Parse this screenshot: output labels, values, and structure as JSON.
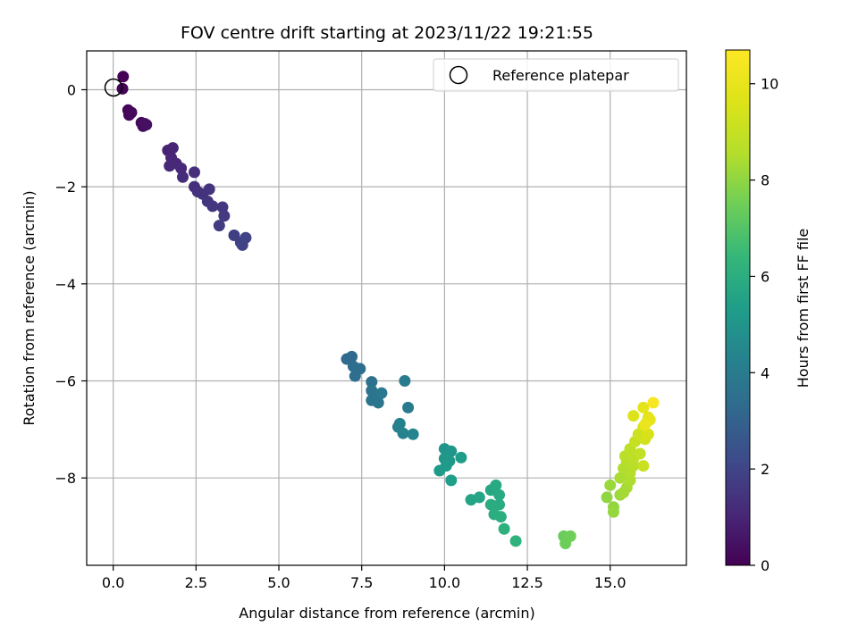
{
  "chart_data": {
    "type": "scatter",
    "title": "FOV centre drift starting at 2023/11/22 19:21:55",
    "xlabel": "Angular distance from reference (arcmin)",
    "ylabel": "Rotation from reference (arcmin)",
    "xlim": [
      -0.8,
      17.3
    ],
    "ylim": [
      -9.8,
      0.8
    ],
    "xticks": [
      0.0,
      2.5,
      5.0,
      7.5,
      10.0,
      12.5,
      15.0
    ],
    "xtick_labels": [
      "0.0",
      "2.5",
      "5.0",
      "7.5",
      "10.0",
      "12.5",
      "15.0"
    ],
    "yticks": [
      0,
      -2,
      -4,
      -6,
      -8
    ],
    "ytick_labels": [
      "0",
      "−2",
      "−4",
      "−6",
      "−8"
    ],
    "grid": true,
    "legend": {
      "position": "top-right",
      "entries": [
        "Reference platepar"
      ]
    },
    "reference_point": {
      "x": 0,
      "y": 0
    },
    "colorbar": {
      "label": "Hours from first FF file",
      "colormap": "viridis",
      "range": [
        0,
        10.7
      ],
      "ticks": [
        0,
        2,
        4,
        6,
        8,
        10
      ],
      "tick_labels": [
        "0",
        "2",
        "4",
        "6",
        "8",
        "10"
      ]
    },
    "series": [
      {
        "colored_by": "hours",
        "points": [
          [
            0.3,
            0.27,
            0.05
          ],
          [
            0.28,
            0.02,
            0.08
          ],
          [
            0.45,
            -0.42,
            0.12
          ],
          [
            0.5,
            -0.5,
            0.15
          ],
          [
            0.48,
            -0.52,
            0.18
          ],
          [
            0.55,
            -0.47,
            0.2
          ],
          [
            0.85,
            -0.68,
            0.25
          ],
          [
            0.9,
            -0.75,
            0.3
          ],
          [
            1.0,
            -0.72,
            0.35
          ],
          [
            0.95,
            -0.7,
            0.4
          ],
          [
            1.65,
            -1.25,
            0.9
          ],
          [
            1.8,
            -1.2,
            0.95
          ],
          [
            1.75,
            -1.4,
            1.0
          ],
          [
            1.9,
            -1.52,
            1.05
          ],
          [
            1.7,
            -1.57,
            1.1
          ],
          [
            2.05,
            -1.62,
            1.15
          ],
          [
            2.1,
            -1.8,
            1.2
          ],
          [
            2.45,
            -1.7,
            1.25
          ],
          [
            2.45,
            -2.0,
            1.3
          ],
          [
            2.55,
            -2.1,
            1.35
          ],
          [
            2.7,
            -2.15,
            1.4
          ],
          [
            2.9,
            -2.05,
            1.45
          ],
          [
            2.85,
            -2.3,
            1.5
          ],
          [
            3.0,
            -2.4,
            1.55
          ],
          [
            3.3,
            -2.42,
            1.6
          ],
          [
            3.35,
            -2.6,
            1.65
          ],
          [
            3.2,
            -2.8,
            1.7
          ],
          [
            3.65,
            -3.0,
            1.8
          ],
          [
            3.85,
            -3.15,
            1.85
          ],
          [
            3.9,
            -3.2,
            1.9
          ],
          [
            4.0,
            -3.05,
            1.95
          ],
          [
            7.05,
            -5.55,
            3.3
          ],
          [
            7.2,
            -5.5,
            3.35
          ],
          [
            7.25,
            -5.7,
            3.4
          ],
          [
            7.3,
            -5.9,
            3.45
          ],
          [
            7.45,
            -5.75,
            3.5
          ],
          [
            7.8,
            -6.02,
            3.6
          ],
          [
            7.8,
            -6.2,
            3.65
          ],
          [
            7.8,
            -6.4,
            3.7
          ],
          [
            8.0,
            -6.45,
            3.75
          ],
          [
            8.0,
            -6.3,
            3.8
          ],
          [
            8.1,
            -6.25,
            3.85
          ],
          [
            8.8,
            -6.0,
            4.0
          ],
          [
            8.9,
            -6.55,
            4.05
          ],
          [
            8.6,
            -6.95,
            4.2
          ],
          [
            8.65,
            -6.88,
            4.25
          ],
          [
            8.75,
            -7.08,
            4.3
          ],
          [
            9.05,
            -7.1,
            4.35
          ],
          [
            10.0,
            -7.4,
            5.0
          ],
          [
            10.2,
            -7.45,
            5.05
          ],
          [
            10.0,
            -7.6,
            5.1
          ],
          [
            10.15,
            -7.65,
            5.15
          ],
          [
            10.05,
            -7.75,
            5.2
          ],
          [
            9.85,
            -7.85,
            5.25
          ],
          [
            10.5,
            -7.58,
            5.3
          ],
          [
            10.2,
            -8.05,
            5.35
          ],
          [
            10.8,
            -8.45,
            5.6
          ],
          [
            11.05,
            -8.4,
            5.65
          ],
          [
            11.4,
            -8.25,
            5.75
          ],
          [
            11.55,
            -8.15,
            5.8
          ],
          [
            11.65,
            -8.35,
            5.85
          ],
          [
            11.65,
            -8.55,
            5.9
          ],
          [
            11.4,
            -8.55,
            5.95
          ],
          [
            11.5,
            -8.75,
            6.0
          ],
          [
            11.7,
            -8.8,
            6.05
          ],
          [
            11.8,
            -9.05,
            6.1
          ],
          [
            12.15,
            -9.3,
            6.2
          ],
          [
            13.6,
            -9.2,
            7.4
          ],
          [
            13.65,
            -9.35,
            7.45
          ],
          [
            13.8,
            -9.2,
            7.5
          ],
          [
            14.9,
            -8.4,
            8.0
          ],
          [
            15.1,
            -8.6,
            8.05
          ],
          [
            15.1,
            -8.7,
            8.1
          ],
          [
            15.0,
            -8.15,
            8.15
          ],
          [
            15.3,
            -8.35,
            8.2
          ],
          [
            15.4,
            -8.3,
            8.3
          ],
          [
            15.5,
            -8.2,
            8.35
          ],
          [
            15.3,
            -8.0,
            8.4
          ],
          [
            15.6,
            -8.05,
            8.45
          ],
          [
            15.4,
            -7.8,
            8.5
          ],
          [
            15.6,
            -7.9,
            8.55
          ],
          [
            15.5,
            -7.65,
            8.6
          ],
          [
            15.7,
            -7.75,
            8.65
          ],
          [
            15.45,
            -7.55,
            8.7
          ],
          [
            15.7,
            -7.6,
            8.75
          ],
          [
            15.6,
            -7.4,
            8.8
          ],
          [
            15.9,
            -7.5,
            8.9
          ],
          [
            15.75,
            -7.25,
            9.0
          ],
          [
            16.0,
            -7.75,
            9.1
          ],
          [
            15.85,
            -7.1,
            9.2
          ],
          [
            16.05,
            -7.2,
            9.3
          ],
          [
            16.0,
            -6.95,
            9.4
          ],
          [
            16.15,
            -7.1,
            9.5
          ],
          [
            15.7,
            -6.72,
            9.6
          ],
          [
            16.1,
            -6.85,
            9.7
          ],
          [
            16.15,
            -6.75,
            9.8
          ],
          [
            16.0,
            -6.55,
            9.9
          ],
          [
            16.2,
            -6.8,
            10.0
          ],
          [
            16.05,
            -6.9,
            10.1
          ],
          [
            16.3,
            -6.45,
            10.5
          ]
        ]
      }
    ]
  }
}
